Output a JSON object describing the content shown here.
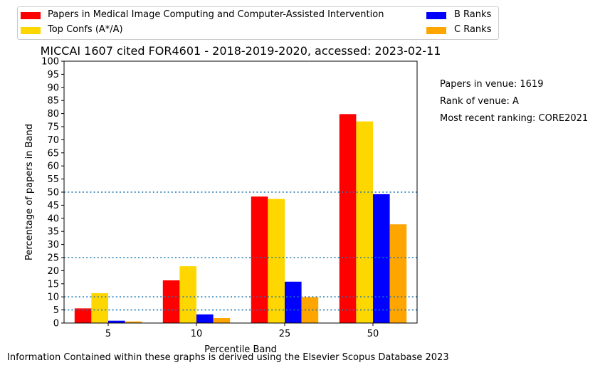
{
  "chart_data": {
    "type": "bar",
    "title": "MICCAI 1607 cited FOR4601 - 2018-2019-2020, accessed: 2023-02-11",
    "xlabel": "Percentile Band",
    "ylabel": "Percentage of papers in Band",
    "categories": [
      "5",
      "10",
      "25",
      "50"
    ],
    "ylim": [
      0,
      100
    ],
    "yticks": [
      0,
      5,
      10,
      15,
      20,
      25,
      30,
      35,
      40,
      45,
      50,
      55,
      60,
      65,
      70,
      75,
      80,
      85,
      90,
      95,
      100
    ],
    "reference_lines": [
      5,
      10,
      25,
      50
    ],
    "series": [
      {
        "name": "Papers in Medical Image Computing and Computer-Assisted Intervention",
        "color": "#ff0000",
        "values": [
          5.6,
          16.3,
          48.3,
          79.8
        ]
      },
      {
        "name": "Top Confs (A*/A)",
        "color": "#ffd700",
        "values": [
          11.4,
          21.7,
          47.4,
          77.0
        ]
      },
      {
        "name": "B Ranks",
        "color": "#0000ff",
        "values": [
          0.9,
          3.3,
          15.8,
          49.2
        ]
      },
      {
        "name": "C Ranks",
        "color": "#ffa500",
        "values": [
          0.6,
          1.9,
          9.9,
          37.7
        ]
      }
    ],
    "legend_position": "top"
  },
  "side_info": [
    "Papers in venue: 1619",
    "Rank of venue: A",
    "Most recent ranking: CORE2021"
  ],
  "footer": "Information Contained within these graphs is derived using the Elsevier Scopus Database 2023"
}
